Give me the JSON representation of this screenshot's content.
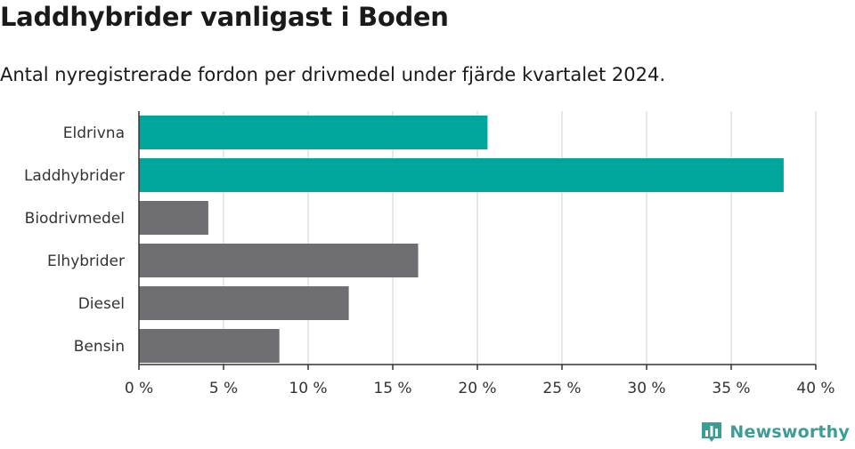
{
  "colors": {
    "highlight": "#00a59c",
    "default": "#6f6e73",
    "grid": "#d9d9d9",
    "axis": "#333333",
    "brand": "#3a9e96"
  },
  "logo": {
    "icon": "bar-chart-icon",
    "text": "Newsworthy"
  },
  "chart_data": {
    "type": "bar",
    "orientation": "horizontal",
    "title": "Laddhybrider vanligast i Boden",
    "subtitle": "Antal nyregistrerade fordon per drivmedel under fjärde kvartalet 2024.",
    "categories": [
      "Eldrivna",
      "Laddhybrider",
      "Biodrivmedel",
      "Elhybrider",
      "Diesel",
      "Bensin"
    ],
    "values": [
      20.6,
      38.1,
      4.1,
      16.5,
      12.4,
      8.3
    ],
    "highlighted": [
      true,
      true,
      false,
      false,
      false,
      false
    ],
    "xlim": [
      0,
      40
    ],
    "xticks": [
      0,
      5,
      10,
      15,
      20,
      25,
      30,
      35,
      40
    ],
    "tick_labels": [
      "0 %",
      "5 %",
      "10 %",
      "15 %",
      "20 %",
      "25 %",
      "30 %",
      "35 %",
      "40 %"
    ],
    "grid": true,
    "xlabel": "",
    "ylabel": ""
  }
}
